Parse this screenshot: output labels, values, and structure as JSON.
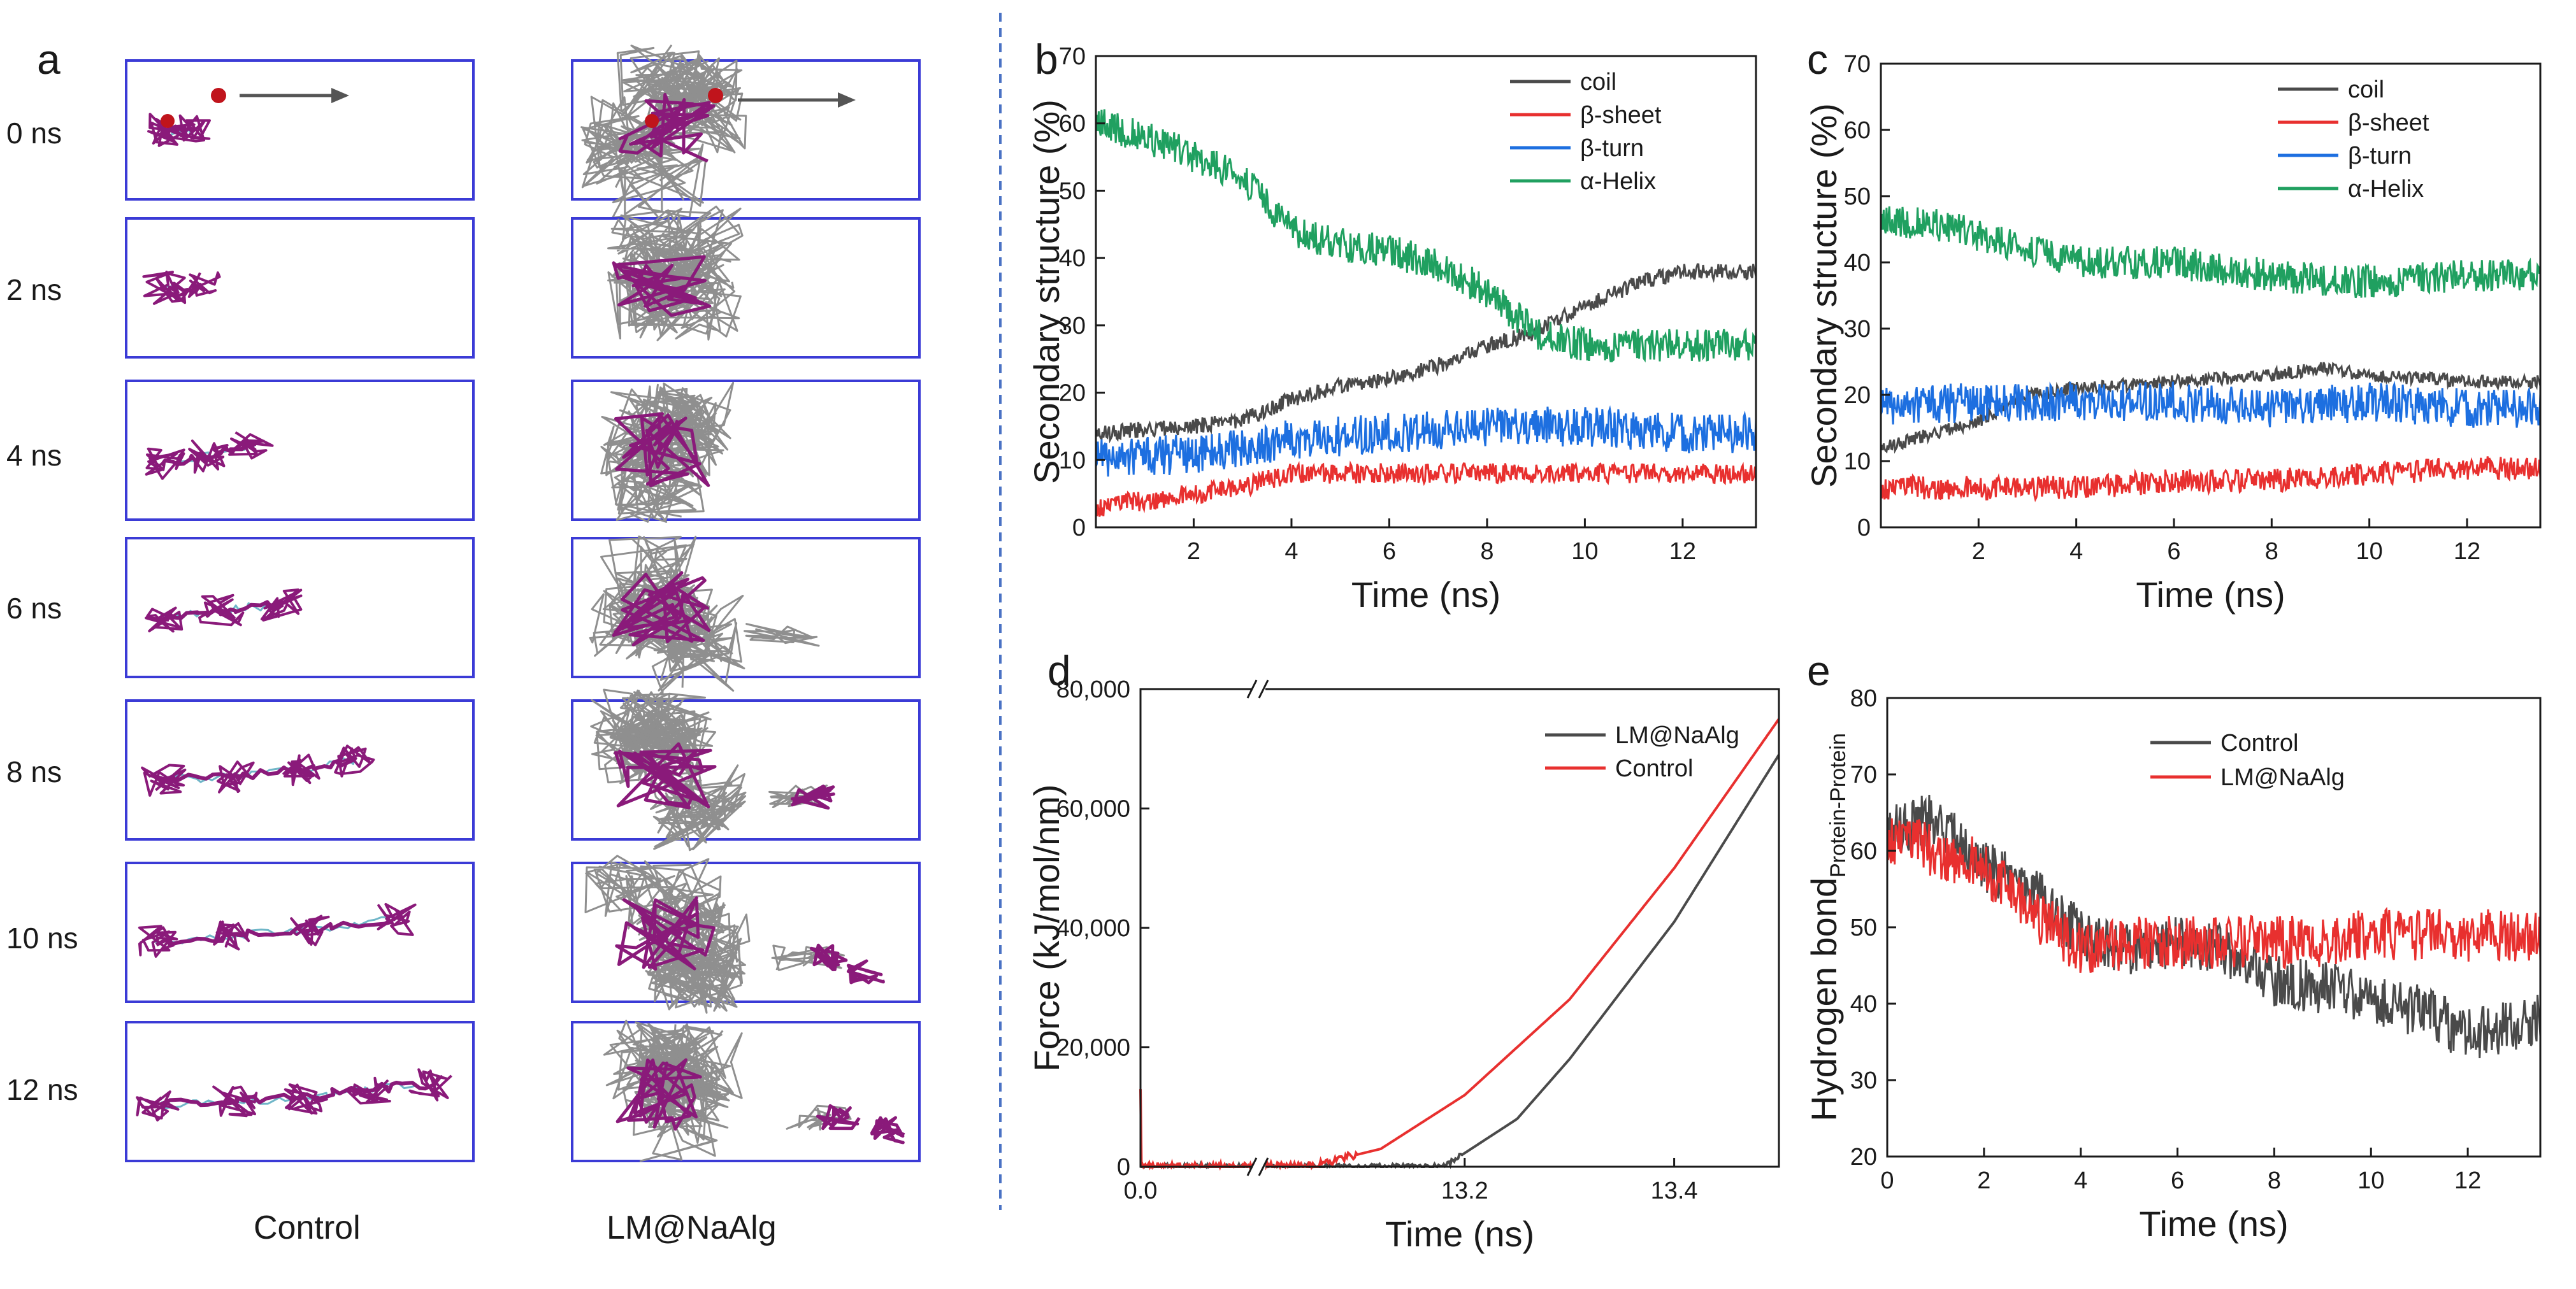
{
  "panel_letters": {
    "a": "a",
    "b": "b",
    "c": "c",
    "d": "d",
    "e": "e"
  },
  "panel_a": {
    "time_labels": [
      "0 ns",
      "2 ns",
      "4 ns",
      "6 ns",
      "8 ns",
      "10 ns",
      "12 ns"
    ],
    "column_labels": [
      "Control",
      "LM@NaAlg"
    ],
    "colors": {
      "frame": "#3b3bd6",
      "protein": "#8a1a7a",
      "polymer": "#8f8f8f",
      "marker": "#c0141c",
      "arrow": "#555555",
      "divider": "#4a72c4"
    }
  },
  "chart_data": [
    {
      "id": "b",
      "type": "line",
      "xlabel": "Time (ns)",
      "ylabel": "Secondary structure (%)",
      "xlim": [
        0,
        13.5
      ],
      "ylim": [
        0,
        70
      ],
      "xticks": [
        2,
        4,
        6,
        8,
        10,
        12
      ],
      "yticks": [
        0,
        10,
        20,
        30,
        40,
        50,
        60,
        70
      ],
      "legend": "top-right",
      "series": [
        {
          "name": "coil",
          "color": "#4a4a4a",
          "noise": 1.2,
          "x": [
            0,
            2,
            3,
            4,
            5,
            6,
            7,
            8,
            9,
            10,
            11,
            12,
            13.5
          ],
          "y": [
            14,
            15,
            16,
            19,
            21,
            22,
            24,
            27,
            29,
            33,
            36,
            38,
            38
          ]
        },
        {
          "name": "β-sheet",
          "color": "#e8302f",
          "noise": 1.5,
          "x": [
            0,
            1,
            2,
            3,
            4,
            6,
            8,
            10,
            12,
            13.5
          ],
          "y": [
            3,
            4,
            5,
            6,
            8,
            8,
            8,
            8,
            8,
            8
          ]
        },
        {
          "name": "β-turn",
          "color": "#1d6fe0",
          "noise": 3.0,
          "x": [
            0,
            2,
            4,
            6,
            8,
            10,
            12,
            13.5
          ],
          "y": [
            10,
            11,
            13,
            14,
            15,
            15,
            14,
            14
          ]
        },
        {
          "name": "α-Helix",
          "color": "#20a060",
          "noise": 2.5,
          "x": [
            0,
            1,
            2,
            3,
            3.5,
            4,
            5,
            6,
            7,
            8,
            9,
            10,
            11,
            12,
            13.5
          ],
          "y": [
            60,
            58,
            55,
            52,
            48,
            44,
            42,
            41,
            39,
            35,
            29,
            27,
            27,
            27,
            27
          ]
        }
      ]
    },
    {
      "id": "c",
      "type": "line",
      "xlabel": "Time (ns)",
      "ylabel": "Secondary structure (%)",
      "xlim": [
        0,
        13.5
      ],
      "ylim": [
        0,
        70
      ],
      "xticks": [
        2,
        4,
        6,
        8,
        10,
        12
      ],
      "yticks": [
        0,
        10,
        20,
        30,
        40,
        50,
        60,
        70
      ],
      "legend": "top-right",
      "series": [
        {
          "name": "coil",
          "color": "#4a4a4a",
          "noise": 1.0,
          "x": [
            0,
            1,
            2,
            3,
            4,
            6,
            8,
            9,
            10,
            12,
            13.5
          ],
          "y": [
            12,
            14,
            16,
            20,
            21,
            22,
            23,
            24,
            23,
            22,
            22
          ]
        },
        {
          "name": "β-sheet",
          "color": "#e8302f",
          "noise": 1.8,
          "x": [
            0,
            2,
            4,
            6,
            8,
            10,
            12,
            13.5
          ],
          "y": [
            6,
            6,
            6,
            7,
            7,
            8,
            9,
            9
          ]
        },
        {
          "name": "β-turn",
          "color": "#1d6fe0",
          "noise": 3.0,
          "x": [
            0,
            2,
            4,
            6,
            8,
            10,
            12,
            13.5
          ],
          "y": [
            18,
            19,
            19,
            19,
            18,
            19,
            18,
            18
          ]
        },
        {
          "name": "α-Helix",
          "color": "#20a060",
          "noise": 2.5,
          "x": [
            0,
            1,
            2,
            3,
            4,
            6,
            8,
            10,
            12,
            13.5
          ],
          "y": [
            46,
            46,
            44,
            42,
            40,
            40,
            38,
            37,
            38,
            38
          ]
        }
      ]
    },
    {
      "id": "d",
      "type": "line",
      "xlabel": "Time (ns)",
      "ylabel": "Force (kJ/mol/nm)",
      "ylim": [
        0,
        80000
      ],
      "ytick_values": [
        0,
        20000,
        40000,
        60000,
        80000
      ],
      "ytick_labels": [
        "0",
        "20,000",
        "40,000",
        "60,000",
        "80,000"
      ],
      "xtick_labels": [
        "0.0",
        "13.2",
        "13.4"
      ],
      "axis_break": true,
      "legend": "top-right",
      "series": [
        {
          "name": "LM@NaAlg",
          "color": "#4a4a4a",
          "noise": 0,
          "x": [
            0.0,
            13.1,
            13.18,
            13.25,
            13.3,
            13.4,
            13.5
          ],
          "y": [
            0,
            0,
            0,
            8000,
            18000,
            41000,
            69000
          ]
        },
        {
          "name": "Control",
          "color": "#e8302f",
          "noise": 400,
          "x": [
            0.0,
            13.05,
            13.12,
            13.2,
            13.3,
            13.4,
            13.5
          ],
          "y": [
            0,
            0,
            3000,
            12000,
            28000,
            50000,
            75000
          ]
        }
      ]
    },
    {
      "id": "e",
      "type": "line",
      "xlabel": "Time (ns)",
      "ylabel": "Hydrogen bond",
      "ylabel_sub": "Protein-Protein",
      "xlim": [
        0,
        13.5
      ],
      "ylim": [
        20,
        80
      ],
      "xticks": [
        0,
        2,
        4,
        6,
        8,
        10,
        12
      ],
      "yticks": [
        20,
        30,
        40,
        50,
        60,
        70,
        80
      ],
      "legend": "top-right",
      "series": [
        {
          "name": "Control",
          "color": "#4a4a4a",
          "noise": 3.5,
          "x": [
            0,
            1,
            2,
            3,
            4,
            5,
            6,
            7,
            8,
            9,
            10,
            11,
            12,
            13.5
          ],
          "y": [
            63,
            64,
            58,
            55,
            49,
            47,
            48,
            47,
            43,
            42,
            41,
            39,
            36,
            38
          ]
        },
        {
          "name": "LM@NaAlg",
          "color": "#e8302f",
          "noise": 3.5,
          "x": [
            0,
            1,
            2,
            3,
            4,
            5,
            6,
            7,
            8,
            9,
            10,
            11,
            12,
            13.5
          ],
          "y": [
            62,
            60,
            58,
            52,
            47,
            48,
            48,
            48,
            48,
            48,
            49,
            49,
            49,
            49
          ]
        }
      ]
    }
  ]
}
